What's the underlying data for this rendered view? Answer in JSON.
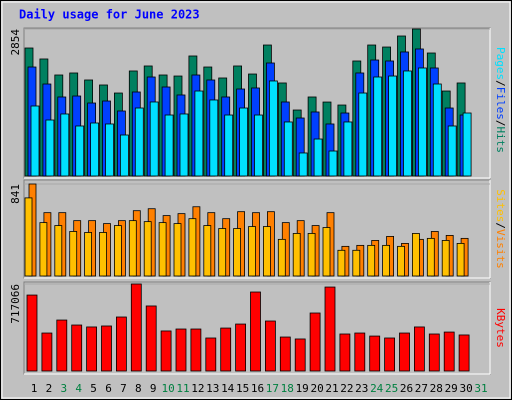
{
  "chart_data": {
    "type": "bar",
    "title": "Daily usage for June 2023",
    "categories": [
      1,
      2,
      3,
      4,
      5,
      6,
      7,
      8,
      9,
      10,
      11,
      12,
      13,
      14,
      15,
      16,
      17,
      18,
      19,
      20,
      21,
      22,
      23,
      24,
      25,
      26,
      27,
      28,
      29,
      30,
      31
    ],
    "category_color": "#000000",
    "weekend_color": "#008040",
    "weekends": [
      2,
      3,
      9,
      10,
      16,
      17,
      23,
      24,
      30
    ],
    "separator": "/",
    "panels": [
      {
        "ylim": [
          0,
          2854
        ],
        "yticks": [
          2854
        ],
        "series": [
          {
            "name": "Hits",
            "color": "#008060",
            "values": [
              2485,
              2272,
              1961,
              2000,
              1864,
              1767,
              1611,
              2039,
              2136,
              1961,
              1941,
              2330,
              2116,
              1903,
              2136,
              1980,
              2543,
              1806,
              1281,
              1534,
              1436,
              1378,
              2233,
              2543,
              2504,
              2718,
              2854,
              2388,
              1650,
              1806,
              null
            ]
          },
          {
            "name": "Files",
            "color": "#0040ff",
            "values": [
              2116,
              1786,
              1534,
              1553,
              1417,
              1456,
              1262,
              1631,
              1922,
              1728,
              1573,
              1961,
              1864,
              1534,
              1689,
              1709,
              2194,
              1437,
              1126,
              1243,
              1010,
              1223,
              2000,
              2252,
              2233,
              2408,
              2466,
              2097,
              1320,
              1184,
              null
            ]
          },
          {
            "name": "Pages",
            "color": "#00e0ff",
            "values": [
              1359,
              1087,
              1204,
              971,
              1029,
              1010,
              796,
              1320,
              1437,
              1184,
              1204,
              1650,
              1476,
              1184,
              1320,
              1184,
              1845,
              1049,
              447,
              718,
              485,
              1049,
              1611,
              1922,
              1941,
              2039,
              2097,
              1786,
              971,
              1223,
              null
            ]
          }
        ]
      },
      {
        "ylim": [
          0,
          841
        ],
        "yticks": [
          841
        ],
        "series": [
          {
            "name": "Visits",
            "color": "#ff8000",
            "values": [
              841,
              579,
              579,
              506,
              506,
              479,
              506,
              597,
              615,
              552,
              570,
              633,
              579,
              524,
              588,
              579,
              588,
              488,
              506,
              461,
              579,
              271,
              280,
              325,
              362,
              298,
              335,
              407,
              371,
              344,
              null
            ]
          },
          {
            "name": "Sites",
            "color": "#ffc000",
            "values": [
              714,
              488,
              461,
              407,
              398,
              398,
              461,
              506,
              497,
              488,
              479,
              524,
              461,
              434,
              434,
              452,
              452,
              335,
              389,
              389,
              443,
              235,
              235,
              280,
              280,
              271,
              389,
              344,
              325,
              298,
              null
            ]
          }
        ]
      },
      {
        "ylim": [
          0,
          717066
        ],
        "yticks": [
          717066
        ],
        "series": [
          {
            "name": "KBytes",
            "color": "#ff0000",
            "values": [
              626000,
              313000,
              420000,
              379000,
              363000,
              371000,
              445000,
              717066,
              536000,
              330000,
              346000,
              346000,
              272000,
              354000,
              387000,
              651000,
              412000,
              280000,
              264000,
              478000,
              692000,
              305000,
              313000,
              288000,
              272000,
              313000,
              363000,
              305000,
              321000,
              297000,
              null
            ]
          }
        ]
      }
    ]
  }
}
